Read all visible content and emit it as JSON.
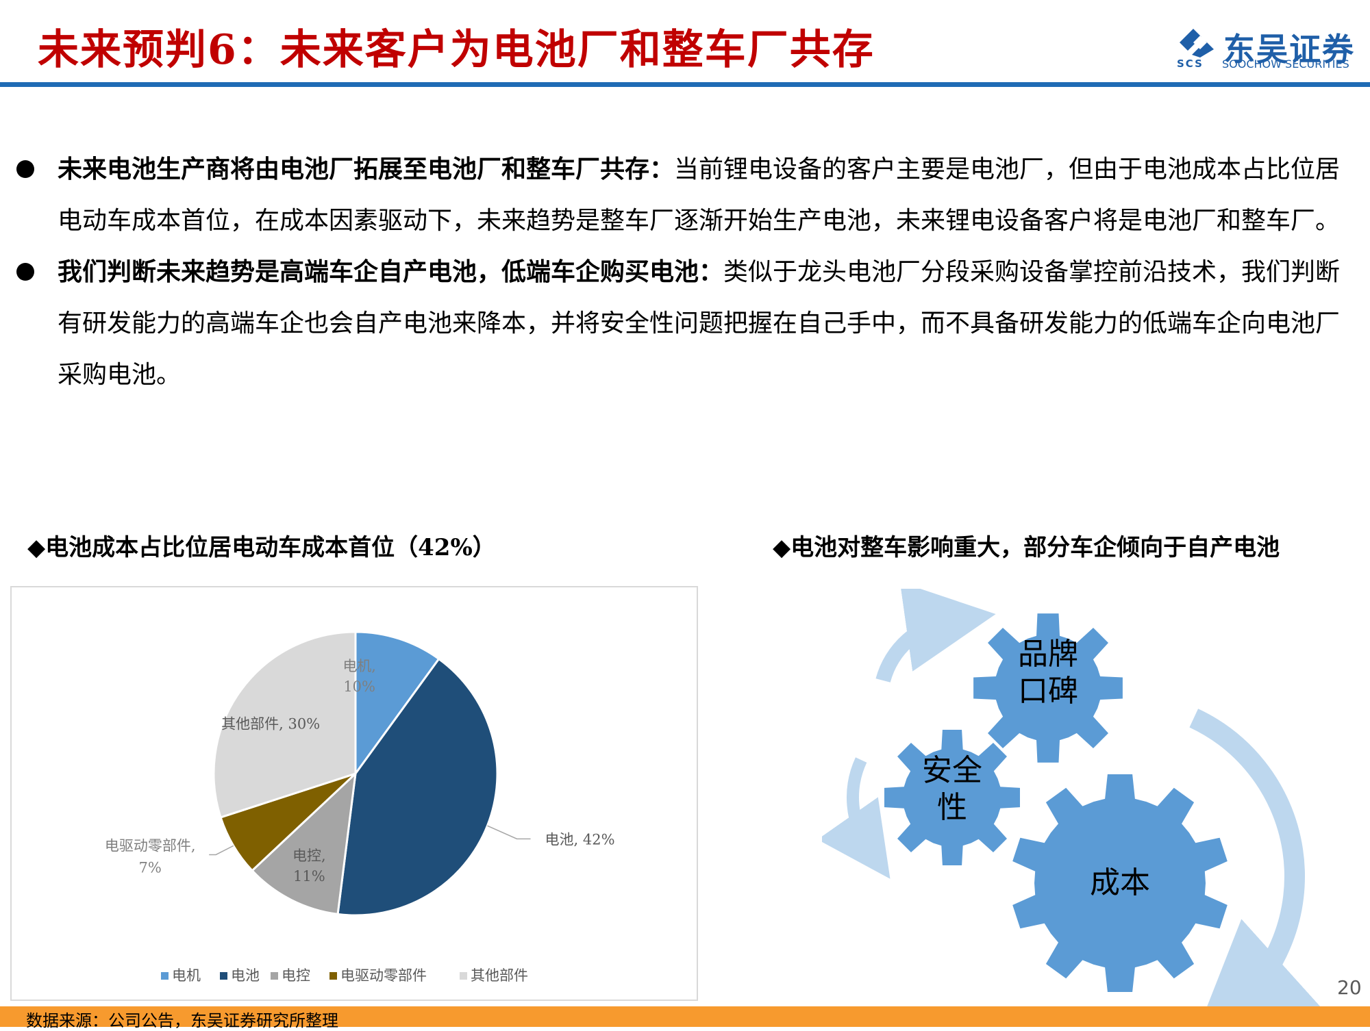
{
  "header": {
    "title": "未来预判6：未来客户为电池厂和整车厂共存",
    "logo_cn": "东吴证券",
    "logo_en": "SOOCHOW SECURITIES",
    "logo_abbr": "SCS"
  },
  "bullets": [
    {
      "heading": "未来电池生产商将由电池厂拓展至电池厂和整车厂共存：",
      "body": "当前锂电设备的客户主要是电池厂，但由于电池成本占比位居电动车成本首位，在成本因素驱动下，未来趋势是整车厂逐渐开始生产电池，未来锂电设备客户将是电池厂和整车厂。"
    },
    {
      "heading": "我们判断未来趋势是高端车企自产电池，低端车企购买电池：",
      "body": "类似于龙头电池厂分段采购设备掌控前沿技术，我们判断有研发能力的高端车企也会自产电池来降本，并将安全性问题把握在自己手中，而不具备研发能力的低端车企向电池厂采购电池。"
    }
  ],
  "left_subtitle": "◆电池成本占比位居电动车成本首位（42%）",
  "right_subtitle": "◆电池对整车影响重大，部分车企倾向于自产电池",
  "chart_data": {
    "type": "pie",
    "categories": [
      "电机",
      "电池",
      "电控",
      "电驱动零部件",
      "其他部件"
    ],
    "values": [
      10,
      42,
      11,
      7,
      30
    ],
    "unit": "%",
    "colors": [
      "#5b9bd5",
      "#1f4e79",
      "#a5a5a5",
      "#7f6000",
      "#d9d9d9"
    ],
    "data_labels": [
      "电机,\n10%",
      "电池, 42%",
      "电控,\n11%",
      "电驱动零部件,\n7%",
      "其他部件, 30%"
    ],
    "legend": "bottom"
  },
  "diagram": {
    "gears": [
      "品牌\n口碑",
      "安全\n性",
      "成本"
    ],
    "gear_color": "#5b9bd5",
    "arrow_color": "#bdd7ee"
  },
  "page_number": "20",
  "footer": "数据来源：公司公告，东吴证券研究所整理"
}
